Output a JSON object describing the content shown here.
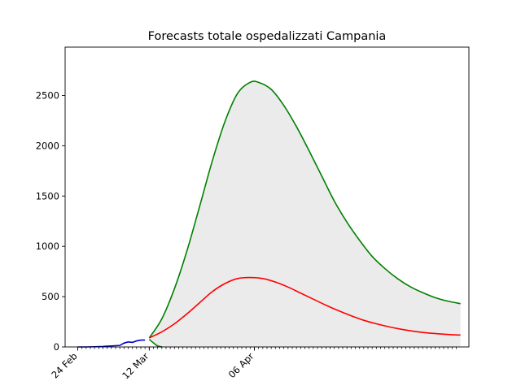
{
  "chart_data": {
    "type": "line",
    "title": "Forecasts totale ospedalizzati Campania",
    "xlabel": "",
    "ylabel": "",
    "x_axis": {
      "kind": "date",
      "start": "2020-02-21",
      "end": "2020-05-27",
      "tick_labels": [
        {
          "date": "2020-02-24",
          "label": "24 Feb"
        },
        {
          "date": "2020-03-12",
          "label": "12 Mar"
        },
        {
          "date": "2020-04-06",
          "label": "06 Apr"
        }
      ],
      "minor_ticks": {
        "from": "2020-02-24",
        "to": "2020-05-24",
        "every_days": 1
      }
    },
    "ylim": [
      0,
      2980
    ],
    "y_ticks": [
      0,
      500,
      1000,
      1500,
      2000,
      2500
    ],
    "grid": false,
    "legend": "none",
    "colors": {
      "observed": "#0000cc",
      "upper": "#008000",
      "central": "#ff0000",
      "band": "#ebebeb"
    },
    "series": [
      {
        "role": "observed",
        "x": [
          "2020-02-24",
          "2020-02-26",
          "2020-02-28",
          "2020-03-01",
          "2020-03-03",
          "2020-03-05",
          "2020-03-06",
          "2020-03-07",
          "2020-03-08",
          "2020-03-09",
          "2020-03-10",
          "2020-03-11"
        ],
        "values": [
          0,
          0,
          2,
          5,
          10,
          15,
          38,
          50,
          45,
          60,
          68,
          68
        ]
      },
      {
        "role": "upper",
        "x": [
          "2020-03-12",
          "2020-03-15",
          "2020-03-18",
          "2020-03-21",
          "2020-03-24",
          "2020-03-27",
          "2020-03-30",
          "2020-04-02",
          "2020-04-05",
          "2020-04-07",
          "2020-04-10",
          "2020-04-13",
          "2020-04-16",
          "2020-04-19",
          "2020-04-22",
          "2020-04-25",
          "2020-04-28",
          "2020-05-01",
          "2020-05-04",
          "2020-05-07",
          "2020-05-10",
          "2020-05-13",
          "2020-05-16",
          "2020-05-19",
          "2020-05-22",
          "2020-05-25"
        ],
        "values": [
          90,
          280,
          580,
          960,
          1400,
          1850,
          2240,
          2520,
          2630,
          2630,
          2560,
          2400,
          2190,
          1950,
          1700,
          1450,
          1240,
          1060,
          900,
          780,
          680,
          600,
          540,
          490,
          455,
          430
        ]
      },
      {
        "role": "lower",
        "x": [
          "2020-03-12",
          "2020-03-13",
          "2020-03-14",
          "2020-03-15"
        ],
        "values": [
          75,
          40,
          10,
          0
        ]
      },
      {
        "role": "central",
        "x": [
          "2020-03-12",
          "2020-03-15",
          "2020-03-18",
          "2020-03-21",
          "2020-03-24",
          "2020-03-27",
          "2020-03-30",
          "2020-04-02",
          "2020-04-05",
          "2020-04-08",
          "2020-04-11",
          "2020-04-14",
          "2020-04-17",
          "2020-04-20",
          "2020-04-23",
          "2020-04-26",
          "2020-04-29",
          "2020-05-02",
          "2020-05-05",
          "2020-05-08",
          "2020-05-11",
          "2020-05-14",
          "2020-05-17",
          "2020-05-20",
          "2020-05-23",
          "2020-05-25"
        ],
        "values": [
          90,
          150,
          230,
          330,
          440,
          550,
          630,
          680,
          690,
          680,
          645,
          595,
          535,
          475,
          415,
          360,
          310,
          265,
          230,
          200,
          175,
          155,
          140,
          130,
          122,
          118
        ]
      }
    ]
  }
}
